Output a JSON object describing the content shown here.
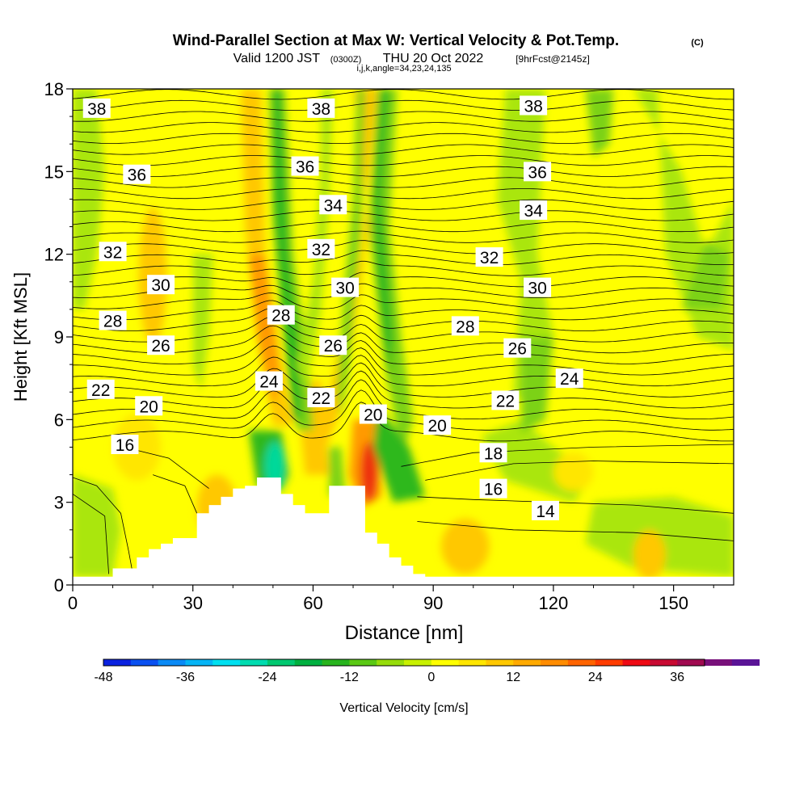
{
  "header": {
    "title": "Wind-Parallel Section at Max W: Vertical Velocity & Pot.Temp.",
    "copyright": "(C)",
    "valid_prefix": "Valid 1200 JST",
    "valid_z": "(0300Z)",
    "valid_date": "THU 20 Oct 2022",
    "forecast": "[9hrFcst@2145z]",
    "indices": "i,j,k,angle=34,23,24,135"
  },
  "chart_data": {
    "type": "heatmap",
    "title": "Wind-Parallel Section at Max W: Vertical Velocity & Pot.Temp.",
    "xlabel": "Distance [nm]",
    "ylabel": "Height [Kft MSL]",
    "xlim": [
      0,
      165
    ],
    "ylim": [
      0,
      18
    ],
    "x_ticks": [
      0,
      30,
      60,
      90,
      120,
      150
    ],
    "x_tick_labels": [
      "0",
      "30",
      "60",
      "90",
      "120",
      "150"
    ],
    "y_ticks": [
      0,
      3,
      6,
      9,
      12,
      15,
      18
    ],
    "y_tick_labels": [
      "0",
      "3",
      "6",
      "9",
      "12",
      "15",
      "18"
    ],
    "grid": false,
    "colorbar": {
      "label": "Vertical Velocity [cm/s]",
      "min": -48,
      "max": 40,
      "step": 4,
      "tick_values": [
        -48,
        -36,
        -24,
        -12,
        0,
        12,
        24,
        36
      ],
      "tick_labels": [
        "-48",
        "-36",
        "-24",
        "-12",
        "0",
        "12",
        "24",
        "36"
      ],
      "colors": [
        "#0a22e0",
        "#0a50f0",
        "#0a8af5",
        "#05b4f5",
        "#00e0f0",
        "#00dcb0",
        "#00c870",
        "#00b040",
        "#28b41e",
        "#5ac814",
        "#96dc0a",
        "#c8f000",
        "#ffff00",
        "#ffe600",
        "#ffc800",
        "#ffaa00",
        "#ff8c00",
        "#ff6400",
        "#ff3c00",
        "#ee0a14",
        "#c80a32",
        "#a00a50",
        "#78107a",
        "#5a1496"
      ]
    },
    "field_colors": {
      "weak_down": "#aae610",
      "down": "#7cd214",
      "strong_down": "#2db81e",
      "strongest_down": "#00d89a",
      "neutral": "#ffff00",
      "weak_up": "#ffe600",
      "up": "#ffc800",
      "strong_up": "#ff9a00",
      "strongest_up": "#ee3010"
    },
    "updraft_cores": [
      {
        "x": 22,
        "y": 11.3,
        "w_cm_s": 8
      },
      {
        "x": 48,
        "y": 9.3,
        "w_cm_s": 14
      },
      {
        "x": 61,
        "y": 6.0,
        "w_cm_s": 12
      },
      {
        "x": 67,
        "y": 12.0,
        "w_cm_s": 8
      },
      {
        "x": 74,
        "y": 4.0,
        "w_cm_s": 28
      },
      {
        "x": 98,
        "y": 1.6,
        "w_cm_s": 8
      },
      {
        "x": 144,
        "y": 1.0,
        "w_cm_s": 8
      }
    ],
    "downdraft_cores": [
      {
        "x": 50,
        "y": 4.3,
        "w_cm_s": -24
      },
      {
        "x": 54,
        "y": 10.5,
        "w_cm_s": -14
      },
      {
        "x": 66,
        "y": 4.4,
        "w_cm_s": -14
      },
      {
        "x": 80,
        "y": 6.5,
        "w_cm_s": -12
      },
      {
        "x": 5,
        "y": 15.8,
        "w_cm_s": -6
      },
      {
        "x": 115,
        "y": 7.0,
        "w_cm_s": -6
      },
      {
        "x": 160,
        "y": 11.3,
        "w_cm_s": -6
      }
    ],
    "terrain_heights_kft": {
      "x": [
        0,
        9,
        10,
        16,
        19,
        22,
        25,
        31,
        34,
        37,
        40,
        43,
        46,
        49,
        52,
        55,
        58,
        61,
        64,
        67,
        70,
        73,
        76,
        79,
        82,
        85,
        88,
        91,
        165
      ],
      "height": [
        0.3,
        0.3,
        0.6,
        1.0,
        1.3,
        1.5,
        1.7,
        2.6,
        2.9,
        3.2,
        3.5,
        3.6,
        3.9,
        3.9,
        3.3,
        2.9,
        2.6,
        2.6,
        3.6,
        3.6,
        3.6,
        1.9,
        1.5,
        1.0,
        0.7,
        0.4,
        0.3,
        0.3,
        0.3
      ]
    },
    "isentrope_labels": [
      {
        "text": "38",
        "x": 6,
        "y": 17.3
      },
      {
        "text": "38",
        "x": 62,
        "y": 17.3
      },
      {
        "text": "38",
        "x": 115,
        "y": 17.4
      },
      {
        "text": "36",
        "x": 16,
        "y": 14.9
      },
      {
        "text": "36",
        "x": 58,
        "y": 15.2
      },
      {
        "text": "36",
        "x": 116,
        "y": 15.0
      },
      {
        "text": "34",
        "x": 65,
        "y": 13.8
      },
      {
        "text": "34",
        "x": 115,
        "y": 13.6
      },
      {
        "text": "32",
        "x": 10,
        "y": 12.1
      },
      {
        "text": "32",
        "x": 62,
        "y": 12.2
      },
      {
        "text": "32",
        "x": 104,
        "y": 11.9
      },
      {
        "text": "30",
        "x": 22,
        "y": 10.9
      },
      {
        "text": "30",
        "x": 68,
        "y": 10.8
      },
      {
        "text": "30",
        "x": 116,
        "y": 10.8
      },
      {
        "text": "28",
        "x": 10,
        "y": 9.6
      },
      {
        "text": "28",
        "x": 52,
        "y": 9.8
      },
      {
        "text": "28",
        "x": 98,
        "y": 9.4
      },
      {
        "text": "26",
        "x": 22,
        "y": 8.7
      },
      {
        "text": "26",
        "x": 65,
        "y": 8.7
      },
      {
        "text": "26",
        "x": 111,
        "y": 8.6
      },
      {
        "text": "24",
        "x": 49,
        "y": 7.4
      },
      {
        "text": "24",
        "x": 124,
        "y": 7.5
      },
      {
        "text": "22",
        "x": 7,
        "y": 7.1
      },
      {
        "text": "22",
        "x": 62,
        "y": 6.8
      },
      {
        "text": "22",
        "x": 108,
        "y": 6.7
      },
      {
        "text": "20",
        "x": 19,
        "y": 6.5
      },
      {
        "text": "20",
        "x": 75,
        "y": 6.2
      },
      {
        "text": "20",
        "x": 91,
        "y": 5.8
      },
      {
        "text": "18",
        "x": 105,
        "y": 4.8
      },
      {
        "text": "16",
        "x": 13,
        "y": 5.1
      },
      {
        "text": "16",
        "x": 105,
        "y": 3.5
      },
      {
        "text": "14",
        "x": 118,
        "y": 2.7
      }
    ]
  }
}
